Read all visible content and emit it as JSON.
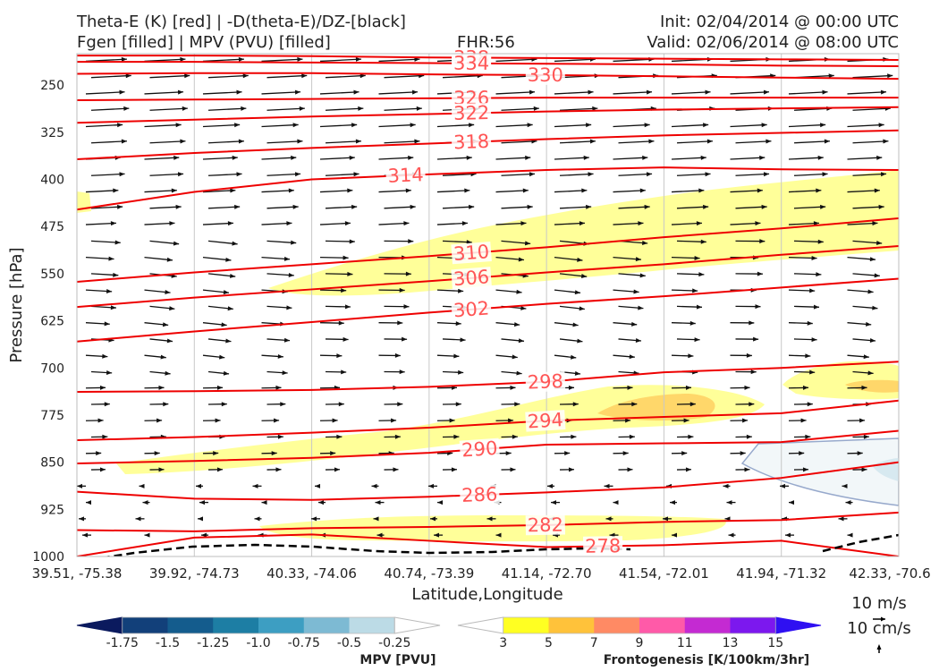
{
  "header": {
    "title_line1": "Theta-E (K) [red] | -D(theta-E)/DZ-[black]",
    "title_line2": "Fgen [filled] | MPV (PVU) [filled]",
    "fhr": "FHR:56",
    "init": "Init: 02/04/2014 @ 00:00 UTC",
    "valid": "Valid: 02/06/2014 @ 08:00 UTC"
  },
  "chart_data": {
    "type": "cross-section",
    "xlabel": "Latitude,Longitude",
    "ylabel": "Pressure [hPa]",
    "x_ticks": [
      "39.51, -75.38",
      "39.92, -74.73",
      "40.33, -74.06",
      "40.74, -73.39",
      "41.14, -72.70",
      "41.54, -72.01",
      "41.94, -71.32",
      "42.33, -70.6"
    ],
    "y_ticks": [
      250,
      325,
      400,
      475,
      550,
      625,
      700,
      775,
      850,
      925,
      1000
    ],
    "ylim": [
      1000,
      200
    ],
    "y_scale": "linear (pressure increasing downward)",
    "theta_e_contours": [
      {
        "label": "338",
        "color": "#ee0000",
        "y": [
          203,
          203,
          204,
          206,
          207,
          208,
          209,
          210
        ]
      },
      {
        "label": "334",
        "color": "#ee0000",
        "y": [
          213,
          213,
          214,
          215,
          216,
          217,
          219,
          220
        ]
      },
      {
        "label": "330",
        "color": "#ee0000",
        "y": [
          232,
          231,
          231,
          233,
          234,
          236,
          238,
          240
        ]
      },
      {
        "label": "326",
        "color": "#ee0000",
        "y": [
          274,
          273,
          272,
          271,
          270,
          270,
          270,
          270
        ]
      },
      {
        "label": "322",
        "color": "#ee0000",
        "y": [
          310,
          305,
          300,
          296,
          292,
          289,
          287,
          285
        ]
      },
      {
        "label": "318",
        "color": "#ee0000",
        "y": [
          368,
          358,
          350,
          343,
          336,
          330,
          326,
          322
        ]
      },
      {
        "label": "314",
        "color": "#ee0000",
        "y": [
          448,
          420,
          400,
          392,
          385,
          381,
          384,
          385
        ]
      },
      {
        "label": "310",
        "color": "#ee0000",
        "y": [
          563,
          548,
          535,
          522,
          508,
          492,
          478,
          462
        ]
      },
      {
        "label": "306",
        "color": "#ee0000",
        "y": [
          603,
          588,
          575,
          562,
          548,
          535,
          520,
          506
        ]
      },
      {
        "label": "302",
        "color": "#ee0000",
        "y": [
          658,
          642,
          627,
          612,
          598,
          586,
          572,
          558
        ]
      },
      {
        "label": "298",
        "color": "#ee0000",
        "y": [
          738,
          737,
          735,
          730,
          722,
          707,
          700,
          690
        ]
      },
      {
        "label": "294",
        "color": "#ee0000",
        "y": [
          815,
          810,
          803,
          795,
          784,
          778,
          772,
          752
        ]
      },
      {
        "label": "290",
        "color": "#ee0000",
        "y": [
          852,
          848,
          843,
          835,
          822,
          820,
          818,
          800
        ]
      },
      {
        "label": "286",
        "color": "#ee0000",
        "y": [
          897,
          908,
          910,
          905,
          898,
          890,
          875,
          850
        ]
      },
      {
        "label": "282",
        "color": "#ee0000",
        "y": [
          958,
          960,
          955,
          953,
          950,
          945,
          942,
          930
        ]
      },
      {
        "label": "278",
        "color": "#ee0000",
        "y": [
          1000,
          970,
          965,
          975,
          985,
          982,
          975,
          1000
        ]
      }
    ],
    "mpv_bar": {
      "label": "MPV [PVU]",
      "ticks": [
        "-1.75",
        "-1.5",
        "-1.25",
        "-1.0",
        "-0.75",
        "-0.5",
        "-0.25"
      ],
      "colors": [
        "#0b1a5e",
        "#12407a",
        "#145c8d",
        "#1d7ea4",
        "#3d9ec2",
        "#7dbad3",
        "#bcdbe6",
        "#ffffff"
      ]
    },
    "fgen_bar": {
      "label": "Frontogenesis [K/100km/3hr]",
      "ticks": [
        "3",
        "5",
        "7",
        "9",
        "11",
        "13",
        "15"
      ],
      "colors": [
        "#ffffff",
        "#ffff22",
        "#ffc23a",
        "#ff8a64",
        "#ff5aa8",
        "#c42ad2",
        "#7c18ee",
        "#2f10f2"
      ]
    },
    "wind_ref": {
      "label1": "10 m/s",
      "label2": "10 cm/s"
    }
  }
}
